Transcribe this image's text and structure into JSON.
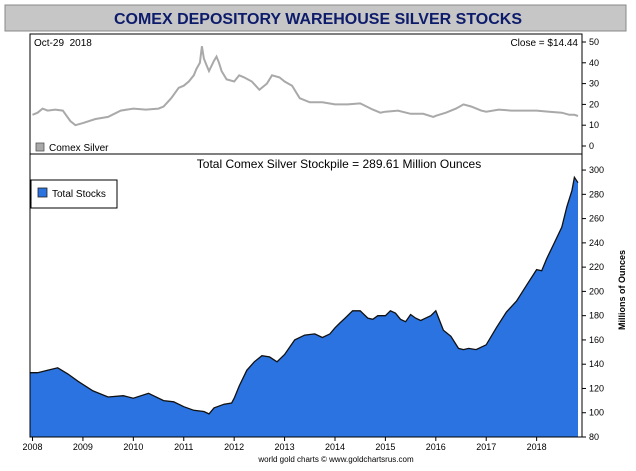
{
  "page": {
    "title": "COMEX DEPOSITORY WAREHOUSE SILVER STOCKS",
    "footer": "world gold charts © www.goldchartsrus.com"
  },
  "colors": {
    "title_bg": "#c6c6c6",
    "title_text": "#0d1b6b",
    "silver_line": "#a9a9a9",
    "stocks_fill": "#2a73e0",
    "stocks_outline": "#111111",
    "frame": "#000000"
  },
  "chart_data": [
    {
      "type": "line",
      "date_label": "Oct-29  2018",
      "close_label": "Close = $14.44",
      "legend": "Comex Silver",
      "x_unit": "year",
      "xlim": [
        2007.95,
        2018.9
      ],
      "ylim": [
        0,
        50
      ],
      "yticks": [
        0,
        10,
        20,
        30,
        40,
        50
      ],
      "series": [
        {
          "name": "Comex Silver",
          "x": [
            2008.0,
            2008.1,
            2008.2,
            2008.3,
            2008.45,
            2008.6,
            2008.75,
            2008.85,
            2009.0,
            2009.25,
            2009.5,
            2009.75,
            2010.0,
            2010.25,
            2010.5,
            2010.6,
            2010.75,
            2010.9,
            2011.0,
            2011.1,
            2011.2,
            2011.25,
            2011.32,
            2011.36,
            2011.4,
            2011.45,
            2011.5,
            2011.6,
            2011.65,
            2011.7,
            2011.75,
            2011.85,
            2012.0,
            2012.1,
            2012.2,
            2012.35,
            2012.5,
            2012.65,
            2012.75,
            2012.9,
            2013.0,
            2013.15,
            2013.3,
            2013.5,
            2013.75,
            2014.0,
            2014.25,
            2014.5,
            2014.75,
            2014.9,
            2015.0,
            2015.25,
            2015.5,
            2015.75,
            2015.95,
            2016.0,
            2016.2,
            2016.4,
            2016.55,
            2016.7,
            2016.9,
            2017.0,
            2017.25,
            2017.5,
            2017.75,
            2018.0,
            2018.25,
            2018.5,
            2018.65,
            2018.75,
            2018.82
          ],
          "values": [
            15,
            16,
            18,
            17,
            17.5,
            17,
            12,
            10,
            11,
            13,
            14,
            17,
            18,
            17.5,
            18,
            19,
            23,
            28,
            29,
            31,
            34,
            37,
            40,
            48,
            42,
            39,
            36,
            41,
            43,
            40,
            36,
            32,
            31,
            34,
            33,
            31,
            27,
            30,
            34,
            33,
            31,
            29,
            23,
            21,
            21,
            20,
            20,
            20.5,
            17.5,
            16,
            16.5,
            17,
            15.5,
            15.5,
            14,
            14.5,
            16,
            18,
            20,
            19,
            17,
            16.5,
            17.5,
            17,
            17,
            17,
            16.5,
            16,
            15,
            15,
            14.44
          ]
        }
      ]
    },
    {
      "type": "area",
      "title": "Total Comex Silver Stockpile = 289.61 Million Ounces",
      "legend": "Total Stocks",
      "ylabel": "Millions of Ounces",
      "x_unit": "year",
      "xlim": [
        2007.95,
        2018.9
      ],
      "ylim": [
        80,
        305
      ],
      "yticks": [
        80,
        100,
        120,
        140,
        160,
        180,
        200,
        220,
        240,
        260,
        280,
        300
      ],
      "xticks": [
        "2008",
        "2009",
        "2010",
        "2011",
        "2012",
        "2013",
        "2014",
        "2015",
        "2016",
        "2017",
        "2018"
      ],
      "series": [
        {
          "name": "Total Stocks",
          "x": [
            2007.95,
            2008.1,
            2008.3,
            2008.5,
            2008.7,
            2008.9,
            2009.2,
            2009.5,
            2009.8,
            2010.0,
            2010.3,
            2010.6,
            2010.8,
            2011.0,
            2011.2,
            2011.4,
            2011.5,
            2011.6,
            2011.8,
            2011.95,
            2012.0,
            2012.1,
            2012.25,
            2012.4,
            2012.55,
            2012.7,
            2012.85,
            2013.0,
            2013.2,
            2013.4,
            2013.6,
            2013.75,
            2013.9,
            2014.0,
            2014.1,
            2014.2,
            2014.35,
            2014.5,
            2014.65,
            2014.75,
            2014.85,
            2015.0,
            2015.1,
            2015.2,
            2015.3,
            2015.4,
            2015.5,
            2015.6,
            2015.7,
            2015.8,
            2015.9,
            2016.0,
            2016.15,
            2016.3,
            2016.45,
            2016.55,
            2016.65,
            2016.8,
            2017.0,
            2017.2,
            2017.4,
            2017.6,
            2017.8,
            2018.0,
            2018.1,
            2018.2,
            2018.35,
            2018.5,
            2018.6,
            2018.7,
            2018.75,
            2018.82
          ],
          "values": [
            133,
            133,
            135,
            137,
            132,
            126,
            118,
            113,
            114,
            112,
            116,
            110,
            109,
            105,
            102,
            101,
            99,
            104,
            107,
            108,
            112,
            122,
            135,
            142,
            147,
            146,
            142,
            148,
            160,
            164,
            165,
            162,
            165,
            170,
            174,
            178,
            184,
            184,
            178,
            177,
            180,
            180,
            184,
            182,
            177,
            175,
            181,
            178,
            176,
            178,
            180,
            184,
            168,
            163,
            153,
            152,
            153,
            152,
            156,
            170,
            183,
            192,
            205,
            218,
            217,
            227,
            240,
            253,
            270,
            283,
            294,
            289.61
          ]
        }
      ]
    }
  ]
}
